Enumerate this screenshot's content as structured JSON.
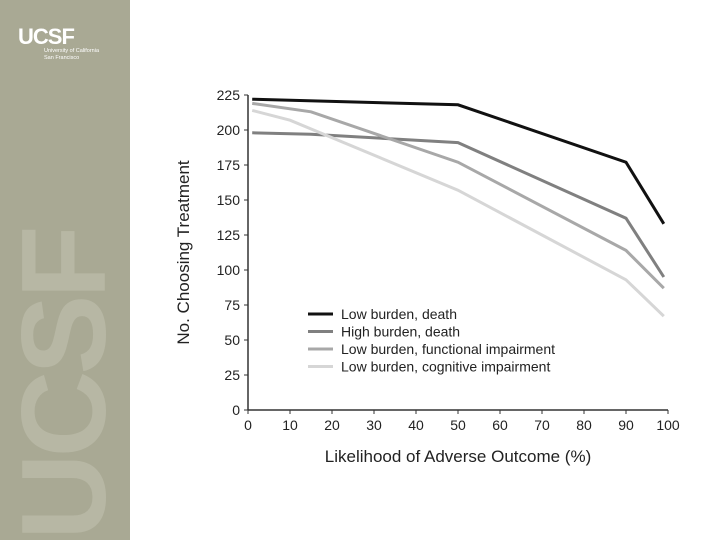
{
  "brand": {
    "logo": "UCSF",
    "subtitle_line1": "University of California",
    "subtitle_line2": "San Francisco",
    "watermark": "UCSF",
    "sidebar_color": "#a9a994"
  },
  "chart_data": {
    "type": "line",
    "title": "",
    "xlabel": "Likelihood of Adverse Outcome (%)",
    "ylabel": "No. Choosing Treatment",
    "xlim": [
      0,
      100
    ],
    "ylim": [
      0,
      225
    ],
    "x_ticks": [
      0,
      10,
      20,
      30,
      40,
      50,
      60,
      70,
      80,
      90,
      100
    ],
    "y_ticks": [
      0,
      25,
      50,
      75,
      100,
      125,
      150,
      175,
      200,
      225
    ],
    "grid": false,
    "legend_position": "lower-left",
    "series": [
      {
        "name": "Low burden, death",
        "color": "#111111",
        "x": [
          1,
          50,
          90,
          99
        ],
        "y": [
          222,
          218,
          177,
          133
        ]
      },
      {
        "name": "High burden, death",
        "color": "#808080",
        "x": [
          1,
          15,
          50,
          90,
          99
        ],
        "y": [
          198,
          197,
          191,
          137,
          95
        ]
      },
      {
        "name": "Low burden, functional impairment",
        "color": "#a8a8a8",
        "x": [
          1,
          15,
          50,
          90,
          99
        ],
        "y": [
          219,
          213,
          177,
          114,
          87
        ]
      },
      {
        "name": "Low burden, cognitive impairment",
        "color": "#d6d6d6",
        "x": [
          1,
          10,
          50,
          90,
          99
        ],
        "y": [
          214,
          207,
          157,
          93,
          67
        ]
      }
    ]
  }
}
